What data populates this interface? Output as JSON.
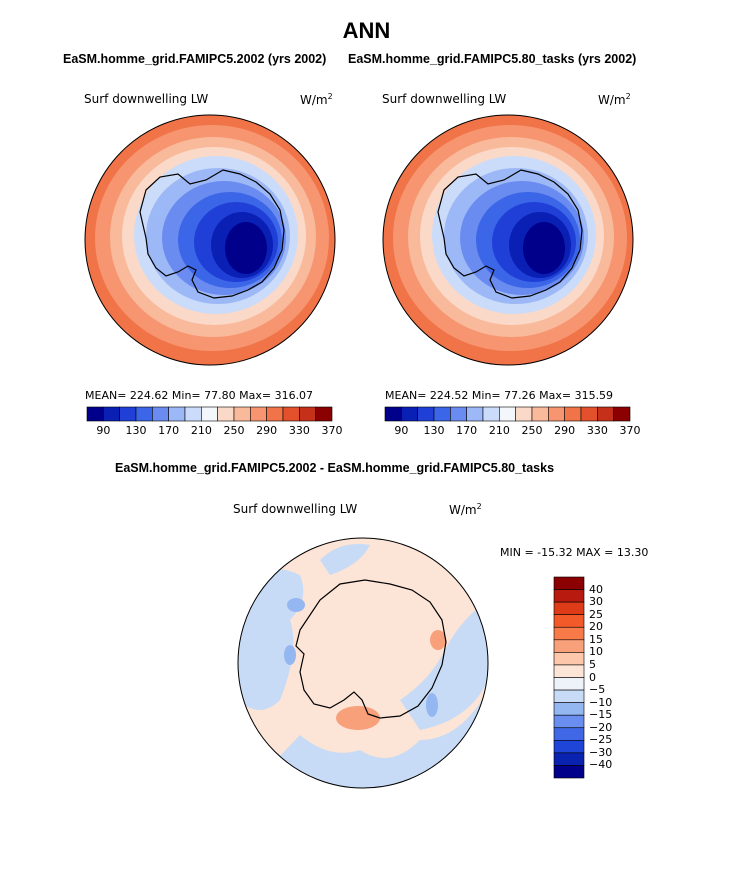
{
  "main_title": "ANN",
  "panel_a": {
    "case_title": "EaSM.homme_grid.FAMIPC5.2002 (yrs 2002)",
    "variable": "Surf downwelling LW",
    "units": "W/m",
    "units_sup": "2",
    "stats": "MEAN= 224.62   Min=   77.80   Max= 316.07"
  },
  "panel_b": {
    "case_title": "EaSM.homme_grid.FAMIPC5.80_tasks (yrs 2002)",
    "variable": "Surf downwelling LW",
    "units": "W/m",
    "units_sup": "2",
    "stats": "MEAN= 224.52   Min=   77.26   Max= 315.59"
  },
  "diff_panel": {
    "case_title": "EaSM.homme_grid.FAMIPC5.2002 - EaSM.homme_grid.FAMIPC5.80_tasks",
    "variable": "Surf downwelling LW",
    "units": "W/m",
    "units_sup": "2",
    "minmax": "MIN = -15.32  MAX =  13.30"
  },
  "colorbar_abs": {
    "colors": [
      "#00008b",
      "#0a1fb4",
      "#1f3fd6",
      "#3c66e8",
      "#6a8cf0",
      "#9db8f6",
      "#cadcfa",
      "#f3f6fb",
      "#fbd9c8",
      "#f9b99b",
      "#f69570",
      "#f07448",
      "#e2502c",
      "#c4301a",
      "#8b0000"
    ],
    "tick_labels": [
      "90",
      "130",
      "170",
      "210",
      "250",
      "290",
      "330",
      "370"
    ]
  },
  "colorbar_diff": {
    "colors": [
      "#8b0000",
      "#b81a0f",
      "#de3b18",
      "#f25a2a",
      "#f77a48",
      "#f8a07a",
      "#fcc7ab",
      "#fce4d6",
      "#eef3f9",
      "#c7dbf6",
      "#95b7f1",
      "#6a8ef0",
      "#4068e6",
      "#1f45d8",
      "#0a22b0",
      "#00008b"
    ],
    "tick_labels": [
      "40",
      "30",
      "25",
      "20",
      "15",
      "10",
      "5",
      "0",
      "−5",
      "−10",
      "−15",
      "−20",
      "−25",
      "−30",
      "−40"
    ]
  },
  "chart_data": [
    {
      "type": "heatmap",
      "title": "EaSM.homme_grid.FAMIPC5.2002 (yrs 2002)",
      "variable": "Surf downwelling LW",
      "units": "W/m^2",
      "projection": "south polar stereographic",
      "stats": {
        "mean": 224.62,
        "min": 77.8,
        "max": 316.07
      },
      "levels": [
        90,
        110,
        130,
        150,
        170,
        190,
        210,
        230,
        250,
        270,
        290,
        310,
        330,
        350,
        370
      ],
      "colorbar_labels": [
        90,
        130,
        170,
        210,
        250,
        290,
        330,
        370
      ]
    },
    {
      "type": "heatmap",
      "title": "EaSM.homme_grid.FAMIPC5.80_tasks (yrs 2002)",
      "variable": "Surf downwelling LW",
      "units": "W/m^2",
      "projection": "south polar stereographic",
      "stats": {
        "mean": 224.52,
        "min": 77.26,
        "max": 315.59
      },
      "levels": [
        90,
        110,
        130,
        150,
        170,
        190,
        210,
        230,
        250,
        270,
        290,
        310,
        330,
        350,
        370
      ],
      "colorbar_labels": [
        90,
        130,
        170,
        210,
        250,
        290,
        330,
        370
      ]
    },
    {
      "type": "heatmap",
      "title": "EaSM.homme_grid.FAMIPC5.2002 - EaSM.homme_grid.FAMIPC5.80_tasks",
      "variable": "Surf downwelling LW",
      "units": "W/m^2",
      "projection": "south polar stereographic",
      "stats": {
        "min": -15.32,
        "max": 13.3
      },
      "levels": [
        -40,
        -30,
        -25,
        -20,
        -15,
        -10,
        -5,
        0,
        5,
        10,
        15,
        20,
        25,
        30,
        40
      ]
    }
  ]
}
